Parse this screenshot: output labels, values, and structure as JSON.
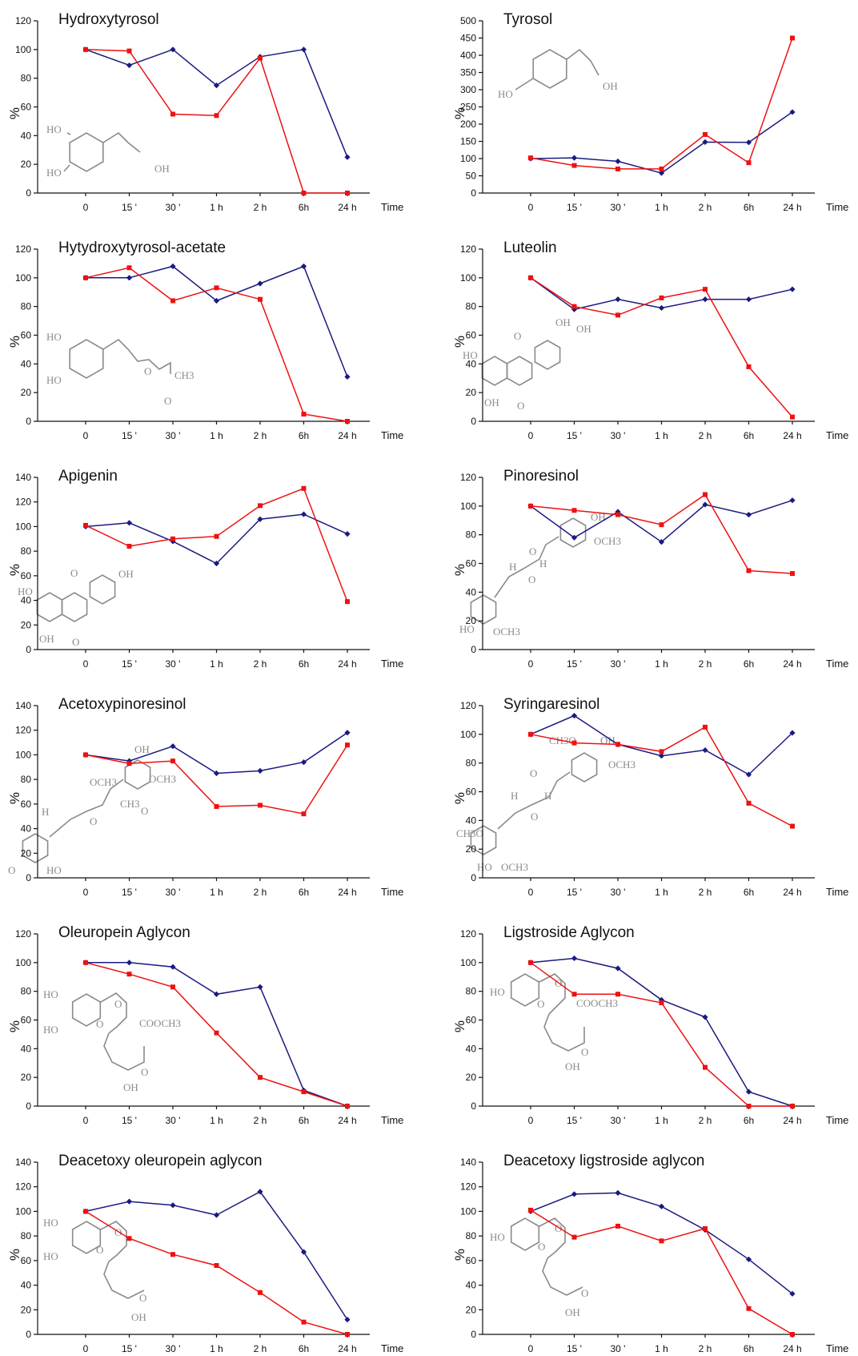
{
  "meta": {
    "colors": {
      "series_blue": "#1a1a80",
      "series_red": "#ee1111",
      "axis": "#111111",
      "structure": "#8a8a8a"
    },
    "x_time_label": "Time",
    "y_axis_label": "%"
  },
  "chart_data": [
    {
      "type": "line",
      "title": "Hydroxytyrosol",
      "categories": [
        "0",
        "15 '",
        "30 '",
        "1 h",
        "2 h",
        "6h",
        "24 h"
      ],
      "ylabel": "%",
      "xlabel": "Time",
      "ylim": [
        0,
        120
      ],
      "yticks": [
        0,
        20,
        40,
        60,
        80,
        100,
        120
      ],
      "series": [
        {
          "color": "#1a1a80",
          "marker": "diamond",
          "values": [
            100,
            89,
            100,
            75,
            95,
            100,
            25
          ]
        },
        {
          "color": "#ee1111",
          "marker": "square",
          "values": [
            100,
            99,
            55,
            54,
            94,
            0,
            0
          ]
        }
      ],
      "structure": {
        "icon": "catechol-ethanol-structure",
        "labels": [
          "HO",
          "HO",
          "OH"
        ]
      }
    },
    {
      "type": "line",
      "title": "Tyrosol",
      "categories": [
        "0",
        "15 '",
        "30 '",
        "1 h",
        "2 h",
        "6h",
        "24 h"
      ],
      "ylabel": "%",
      "xlabel": "Time",
      "ylim": [
        0,
        500
      ],
      "yticks": [
        0,
        50,
        100,
        150,
        200,
        250,
        300,
        350,
        400,
        450,
        500
      ],
      "series": [
        {
          "color": "#1a1a80",
          "marker": "diamond",
          "values": [
            100,
            102,
            92,
            58,
            148,
            147,
            235
          ]
        },
        {
          "color": "#ee1111",
          "marker": "square",
          "values": [
            102,
            80,
            70,
            70,
            170,
            88,
            450
          ]
        }
      ],
      "structure": {
        "icon": "phenol-ethanol-structure",
        "labels": [
          "HO",
          "OH"
        ]
      }
    },
    {
      "type": "line",
      "title": "Hytydroxytyrosol-acetate",
      "categories": [
        "0",
        "15 '",
        "30 '",
        "1 h",
        "2 h",
        "6h",
        "24 h"
      ],
      "ylabel": "%",
      "xlabel": "Time",
      "ylim": [
        0,
        120
      ],
      "yticks": [
        0,
        20,
        40,
        60,
        80,
        100,
        120
      ],
      "series": [
        {
          "color": "#1a1a80",
          "marker": "diamond",
          "values": [
            100,
            100,
            108,
            84,
            96,
            108,
            31
          ]
        },
        {
          "color": "#ee1111",
          "marker": "square",
          "values": [
            100,
            107,
            84,
            93,
            85,
            5,
            0
          ]
        }
      ],
      "structure": {
        "icon": "catechol-ethyl-acetate-structure",
        "labels": [
          "HO",
          "HO",
          "O",
          "CH3",
          "O"
        ]
      }
    },
    {
      "type": "line",
      "title": "Luteolin",
      "categories": [
        "0",
        "15 '",
        "30 '",
        "1 h",
        "2 h",
        "6h",
        "24 h"
      ],
      "ylabel": "%",
      "xlabel": "Time",
      "ylim": [
        0,
        120
      ],
      "yticks": [
        0,
        20,
        40,
        60,
        80,
        100,
        120
      ],
      "series": [
        {
          "color": "#1a1a80",
          "marker": "diamond",
          "values": [
            100,
            78,
            85,
            79,
            85,
            85,
            92
          ]
        },
        {
          "color": "#ee1111",
          "marker": "square",
          "values": [
            100,
            80,
            74,
            86,
            92,
            38,
            3
          ]
        }
      ],
      "structure": {
        "icon": "flavone-structure",
        "labels": [
          "HO",
          "OH",
          "OH",
          "OH",
          "O",
          "O"
        ]
      }
    },
    {
      "type": "line",
      "title": "Apigenin",
      "categories": [
        "0",
        "15 '",
        "30 '",
        "1 h",
        "2 h",
        "6h",
        "24 h"
      ],
      "ylabel": "%",
      "xlabel": "Time",
      "ylim": [
        0,
        140
      ],
      "yticks": [
        0,
        20,
        40,
        60,
        80,
        100,
        120,
        140
      ],
      "series": [
        {
          "color": "#1a1a80",
          "marker": "diamond",
          "values": [
            100,
            103,
            88,
            70,
            106,
            110,
            94
          ]
        },
        {
          "color": "#ee1111",
          "marker": "square",
          "values": [
            101,
            84,
            90,
            92,
            117,
            131,
            39
          ]
        }
      ],
      "structure": {
        "icon": "flavone-structure",
        "labels": [
          "HO",
          "OH",
          "OH",
          "O",
          "O"
        ]
      }
    },
    {
      "type": "line",
      "title": "Pinoresinol",
      "categories": [
        "0",
        "15 '",
        "30 '",
        "1 h",
        "2 h",
        "6h",
        "24 h"
      ],
      "ylabel": "%",
      "xlabel": "Time",
      "ylim": [
        0,
        120
      ],
      "yticks": [
        0,
        20,
        40,
        60,
        80,
        100,
        120
      ],
      "series": [
        {
          "color": "#1a1a80",
          "marker": "diamond",
          "values": [
            100,
            78,
            96,
            75,
            101,
            94,
            104
          ]
        },
        {
          "color": "#ee1111",
          "marker": "square",
          "values": [
            100,
            97,
            94,
            87,
            108,
            55,
            53
          ]
        }
      ],
      "structure": {
        "icon": "lignan-structure",
        "labels": [
          "OH",
          "OCH3",
          "H",
          "H",
          "HO",
          "OCH3",
          "O",
          "O"
        ]
      }
    },
    {
      "type": "line",
      "title": "Acetoxypinoresinol",
      "categories": [
        "0",
        "15 '",
        "30 '",
        "1 h",
        "2 h",
        "6h",
        "24 h"
      ],
      "ylabel": "%",
      "xlabel": "Time",
      "ylim": [
        0,
        140
      ],
      "yticks": [
        0,
        20,
        40,
        60,
        80,
        100,
        120,
        140
      ],
      "series": [
        {
          "color": "#1a1a80",
          "marker": "diamond",
          "values": [
            100,
            95,
            107,
            85,
            87,
            94,
            118
          ]
        },
        {
          "color": "#ee1111",
          "marker": "square",
          "values": [
            100,
            93,
            95,
            58,
            59,
            52,
            108
          ]
        }
      ],
      "structure": {
        "icon": "lignan-acetoxy-structure",
        "labels": [
          "OH",
          "OCH3",
          "H",
          "CH3",
          "O",
          "HO",
          "OCH3",
          "O",
          "O"
        ]
      }
    },
    {
      "type": "line",
      "title": "Syringaresinol",
      "categories": [
        "0",
        "15 '",
        "30 '",
        "1 h",
        "2 h",
        "6h",
        "24 h"
      ],
      "ylabel": "%",
      "xlabel": "Time",
      "ylim": [
        0,
        120
      ],
      "yticks": [
        0,
        20,
        40,
        60,
        80,
        100,
        120
      ],
      "series": [
        {
          "color": "#1a1a80",
          "marker": "diamond",
          "values": [
            100,
            113,
            93,
            85,
            89,
            72,
            101
          ]
        },
        {
          "color": "#ee1111",
          "marker": "square",
          "values": [
            100,
            94,
            93,
            88,
            105,
            52,
            36
          ]
        }
      ],
      "structure": {
        "icon": "syringyl-lignan-structure",
        "labels": [
          "CH3O",
          "OH",
          "OCH3",
          "H",
          "H",
          "CH3O",
          "HO",
          "OCH3",
          "O",
          "O"
        ]
      }
    },
    {
      "type": "line",
      "title": "Oleuropein Aglycon",
      "categories": [
        "0",
        "15 '",
        "30 '",
        "1 h",
        "2 h",
        "6h",
        "24 h"
      ],
      "ylabel": "%",
      "xlabel": "Time",
      "ylim": [
        0,
        120
      ],
      "yticks": [
        0,
        20,
        40,
        60,
        80,
        100,
        120
      ],
      "series": [
        {
          "color": "#1a1a80",
          "marker": "diamond",
          "values": [
            100,
            100,
            97,
            78,
            83,
            11,
            0
          ]
        },
        {
          "color": "#ee1111",
          "marker": "square",
          "values": [
            100,
            92,
            83,
            51,
            20,
            10,
            0
          ]
        }
      ],
      "structure": {
        "icon": "secoiridoid-catechol-structure",
        "labels": [
          "HO",
          "HO",
          "COOCH3",
          "OH",
          "O",
          "O",
          "O"
        ]
      }
    },
    {
      "type": "line",
      "title": "Ligstroside  Aglycon",
      "categories": [
        "0",
        "15 '",
        "30 '",
        "1 h",
        "2 h",
        "6h",
        "24 h"
      ],
      "ylabel": "%",
      "xlabel": "Time",
      "ylim": [
        0,
        120
      ],
      "yticks": [
        0,
        20,
        40,
        60,
        80,
        100,
        120
      ],
      "series": [
        {
          "color": "#1a1a80",
          "marker": "diamond",
          "values": [
            100,
            103,
            96,
            74,
            62,
            10,
            0
          ]
        },
        {
          "color": "#ee1111",
          "marker": "square",
          "values": [
            100,
            78,
            78,
            72,
            27,
            0,
            0
          ]
        }
      ],
      "structure": {
        "icon": "secoiridoid-phenol-structure",
        "labels": [
          "HO",
          "COOCH3",
          "OH",
          "O",
          "O",
          "O"
        ]
      }
    },
    {
      "type": "line",
      "title": "Deacetoxy oleuropein aglycon",
      "categories": [
        "0",
        "15 '",
        "30 '",
        "1 h",
        "2 h",
        "6h",
        "24 h"
      ],
      "ylabel": "%",
      "xlabel": "Time",
      "ylim": [
        0,
        140
      ],
      "yticks": [
        0,
        20,
        40,
        60,
        80,
        100,
        120,
        140
      ],
      "series": [
        {
          "color": "#1a1a80",
          "marker": "diamond",
          "values": [
            100,
            108,
            105,
            97,
            116,
            67,
            12
          ]
        },
        {
          "color": "#ee1111",
          "marker": "square",
          "values": [
            100,
            78,
            65,
            56,
            34,
            10,
            0
          ]
        }
      ],
      "structure": {
        "icon": "dialdehyde-catechol-structure",
        "labels": [
          "HO",
          "HO",
          "OH",
          "O",
          "O",
          "O"
        ]
      }
    },
    {
      "type": "line",
      "title": "Deacetoxy ligstroside aglycon",
      "categories": [
        "0",
        "15 '",
        "30 '",
        "1 h",
        "2 h",
        "6h",
        "24 h"
      ],
      "ylabel": "%",
      "xlabel": "Time",
      "ylim": [
        0,
        140
      ],
      "yticks": [
        0,
        20,
        40,
        60,
        80,
        100,
        120,
        140
      ],
      "series": [
        {
          "color": "#1a1a80",
          "marker": "diamond",
          "values": [
            100,
            114,
            115,
            104,
            85,
            61,
            33
          ]
        },
        {
          "color": "#ee1111",
          "marker": "square",
          "values": [
            101,
            79,
            88,
            76,
            86,
            21,
            0
          ]
        }
      ],
      "structure": {
        "icon": "dialdehyde-phenol-structure",
        "labels": [
          "HO",
          "OH",
          "O",
          "O",
          "O"
        ]
      }
    }
  ]
}
